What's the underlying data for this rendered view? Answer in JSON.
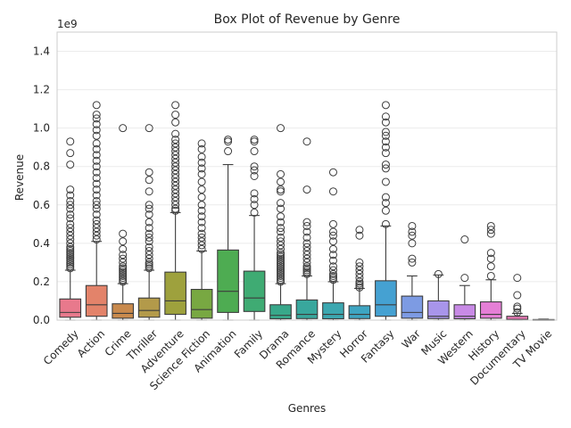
{
  "chart_data": {
    "type": "box",
    "title": "Box Plot of Revenue by Genre",
    "xlabel": "Genres",
    "ylabel": "Revenue",
    "y_multiplier_label": "1e9",
    "ylim": [
      0,
      1.5
    ],
    "yticks": [
      "0.0",
      "0.2",
      "0.4",
      "0.6",
      "0.8",
      "1.0",
      "1.2",
      "1.4"
    ],
    "ytick_values": [
      0,
      0.2,
      0.4,
      0.6,
      0.8,
      1.0,
      1.2,
      1.4
    ],
    "grid": true,
    "categories": [
      {
        "name": "Comedy",
        "color": "#e8798c",
        "q1": 0.015,
        "median": 0.04,
        "q3": 0.11,
        "whisker_low": 0.0,
        "whisker_high": 0.26,
        "outliers": [
          0.27,
          0.28,
          0.29,
          0.3,
          0.31,
          0.32,
          0.33,
          0.34,
          0.35,
          0.36,
          0.37,
          0.38,
          0.4,
          0.42,
          0.44,
          0.46,
          0.48,
          0.5,
          0.53,
          0.55,
          0.58,
          0.6,
          0.62,
          0.65,
          0.68,
          0.81,
          0.87,
          0.93
        ]
      },
      {
        "name": "Action",
        "color": "#e3836a",
        "q1": 0.02,
        "median": 0.08,
        "q3": 0.18,
        "whisker_low": 0.0,
        "whisker_high": 0.41,
        "outliers": [
          0.42,
          0.44,
          0.46,
          0.48,
          0.5,
          0.52,
          0.55,
          0.58,
          0.6,
          0.62,
          0.65,
          0.68,
          0.71,
          0.74,
          0.77,
          0.8,
          0.83,
          0.86,
          0.89,
          0.92,
          0.96,
          0.99,
          1.02,
          1.05,
          1.07,
          1.12
        ]
      },
      {
        "name": "Crime",
        "color": "#c98a4d",
        "q1": 0.01,
        "median": 0.035,
        "q3": 0.085,
        "whisker_low": 0.0,
        "whisker_high": 0.19,
        "outliers": [
          0.2,
          0.21,
          0.22,
          0.23,
          0.24,
          0.25,
          0.26,
          0.27,
          0.28,
          0.3,
          0.32,
          0.34,
          0.37,
          0.41,
          0.45,
          1.0
        ]
      },
      {
        "name": "Thriller",
        "color": "#b39a4a",
        "q1": 0.015,
        "median": 0.05,
        "q3": 0.115,
        "whisker_low": 0.0,
        "whisker_high": 0.26,
        "outliers": [
          0.27,
          0.28,
          0.29,
          0.3,
          0.32,
          0.34,
          0.36,
          0.38,
          0.41,
          0.43,
          0.45,
          0.48,
          0.51,
          0.55,
          0.58,
          0.6,
          0.67,
          0.73,
          0.77,
          1.0
        ]
      },
      {
        "name": "Adventure",
        "color": "#9ea13d",
        "q1": 0.03,
        "median": 0.1,
        "q3": 0.25,
        "whisker_low": 0.0,
        "whisker_high": 0.56,
        "outliers": [
          0.57,
          0.58,
          0.6,
          0.62,
          0.64,
          0.66,
          0.68,
          0.7,
          0.72,
          0.74,
          0.76,
          0.78,
          0.8,
          0.82,
          0.84,
          0.86,
          0.88,
          0.9,
          0.92,
          0.94,
          0.97,
          1.03,
          1.07,
          1.12
        ]
      },
      {
        "name": "Science Fiction",
        "color": "#78a842",
        "q1": 0.01,
        "median": 0.055,
        "q3": 0.16,
        "whisker_low": 0.0,
        "whisker_high": 0.36,
        "outliers": [
          0.37,
          0.39,
          0.41,
          0.43,
          0.45,
          0.48,
          0.51,
          0.54,
          0.57,
          0.6,
          0.64,
          0.68,
          0.72,
          0.76,
          0.79,
          0.82,
          0.85,
          0.89,
          0.92
        ]
      },
      {
        "name": "Animation",
        "color": "#4eac52",
        "q1": 0.04,
        "median": 0.15,
        "q3": 0.365,
        "whisker_low": 0.0,
        "whisker_high": 0.81,
        "outliers": [
          0.88,
          0.93,
          0.94
        ]
      },
      {
        "name": "Family",
        "color": "#3fab73",
        "q1": 0.045,
        "median": 0.115,
        "q3": 0.255,
        "whisker_low": 0.0,
        "whisker_high": 0.545,
        "outliers": [
          0.56,
          0.6,
          0.63,
          0.66,
          0.75,
          0.78,
          0.8,
          0.88,
          0.93,
          0.94
        ]
      },
      {
        "name": "Drama",
        "color": "#38a88a",
        "q1": 0.007,
        "median": 0.025,
        "q3": 0.08,
        "whisker_low": 0.0,
        "whisker_high": 0.19,
        "outliers": [
          0.2,
          0.21,
          0.22,
          0.23,
          0.24,
          0.25,
          0.26,
          0.27,
          0.28,
          0.29,
          0.3,
          0.31,
          0.32,
          0.33,
          0.34,
          0.35,
          0.37,
          0.39,
          0.41,
          0.43,
          0.46,
          0.48,
          0.51,
          0.54,
          0.58,
          0.61,
          0.67,
          0.68,
          0.72,
          0.76,
          1.0
        ]
      },
      {
        "name": "Romance",
        "color": "#39a79d",
        "q1": 0.008,
        "median": 0.03,
        "q3": 0.105,
        "whisker_low": 0.0,
        "whisker_high": 0.23,
        "outliers": [
          0.24,
          0.25,
          0.26,
          0.27,
          0.28,
          0.3,
          0.32,
          0.34,
          0.36,
          0.38,
          0.4,
          0.43,
          0.46,
          0.49,
          0.51,
          0.68,
          0.93
        ]
      },
      {
        "name": "Mystery",
        "color": "#3ca7b0",
        "q1": 0.007,
        "median": 0.03,
        "q3": 0.09,
        "whisker_low": 0.0,
        "whisker_high": 0.2,
        "outliers": [
          0.21,
          0.22,
          0.23,
          0.24,
          0.26,
          0.28,
          0.31,
          0.34,
          0.37,
          0.41,
          0.44,
          0.46,
          0.5,
          0.67,
          0.77
        ]
      },
      {
        "name": "Horror",
        "color": "#3ea5c2",
        "q1": 0.008,
        "median": 0.03,
        "q3": 0.075,
        "whisker_low": 0.0,
        "whisker_high": 0.165,
        "outliers": [
          0.17,
          0.18,
          0.19,
          0.2,
          0.22,
          0.24,
          0.26,
          0.28,
          0.3,
          0.44,
          0.47
        ]
      },
      {
        "name": "Fantasy",
        "color": "#45a1d2",
        "q1": 0.02,
        "median": 0.08,
        "q3": 0.205,
        "whisker_low": 0.0,
        "whisker_high": 0.49,
        "outliers": [
          0.5,
          0.57,
          0.61,
          0.64,
          0.72,
          0.79,
          0.81,
          0.87,
          0.9,
          0.93,
          0.96,
          0.98,
          1.03,
          1.06,
          1.12
        ]
      },
      {
        "name": "War",
        "color": "#7d9be3",
        "q1": 0.01,
        "median": 0.04,
        "q3": 0.125,
        "whisker_low": 0.0,
        "whisker_high": 0.23,
        "outliers": [
          0.3,
          0.32,
          0.4,
          0.44,
          0.46,
          0.49
        ]
      },
      {
        "name": "Music",
        "color": "#a895ea",
        "q1": 0.008,
        "median": 0.02,
        "q3": 0.1,
        "whisker_low": 0.0,
        "whisker_high": 0.235,
        "outliers": [
          0.24
        ]
      },
      {
        "name": "Western",
        "color": "#c88ae6",
        "q1": 0.007,
        "median": 0.02,
        "q3": 0.08,
        "whisker_low": 0.0,
        "whisker_high": 0.18,
        "outliers": [
          0.22,
          0.42
        ]
      },
      {
        "name": "History",
        "color": "#e57fd6",
        "q1": 0.01,
        "median": 0.03,
        "q3": 0.095,
        "whisker_low": 0.0,
        "whisker_high": 0.21,
        "outliers": [
          0.23,
          0.28,
          0.32,
          0.35,
          0.45,
          0.47,
          0.49
        ]
      },
      {
        "name": "Documentary",
        "color": "#e879b5",
        "q1": 0.001,
        "median": 0.004,
        "q3": 0.02,
        "whisker_low": 0.0,
        "whisker_high": 0.035,
        "outliers": [
          0.04,
          0.06,
          0.07,
          0.13,
          0.22
        ]
      },
      {
        "name": "TV Movie",
        "color": "#e97a9f",
        "q1": 0.0,
        "median": 0.001,
        "q3": 0.003,
        "whisker_low": 0.0,
        "whisker_high": 0.005,
        "outliers": []
      }
    ]
  },
  "colors": {
    "background": "#ffffff",
    "grid": "#ebebeb",
    "axes_edge": "#cccccc",
    "line": "#3d3d3d"
  }
}
